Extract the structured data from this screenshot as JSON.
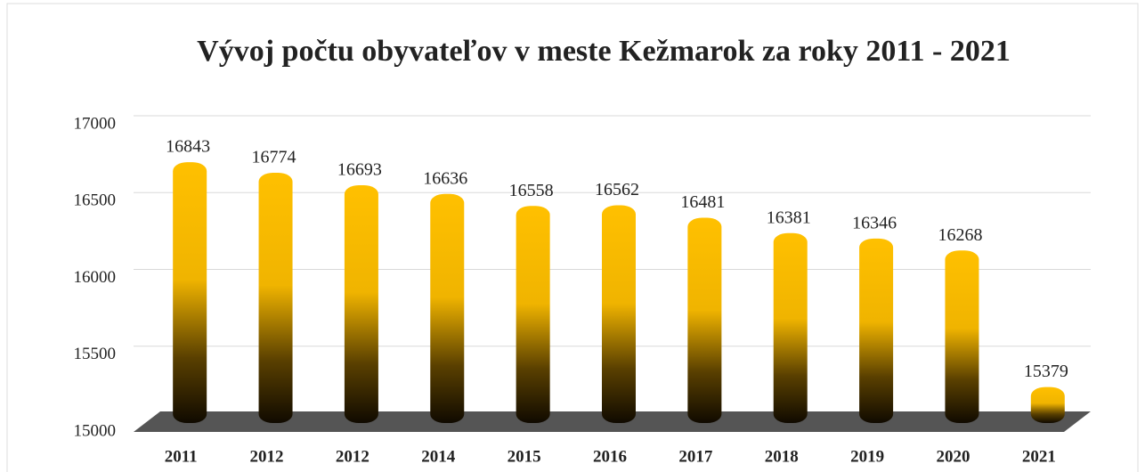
{
  "chart_data": {
    "type": "bar",
    "title": "Vývoj počtu obyvateľov v meste Kežmarok za roky 2011 - 2021",
    "categories": [
      "2011",
      "2012",
      "2012",
      "2014",
      "2015",
      "2016",
      "2017",
      "2018",
      "2019",
      "2020",
      "2021"
    ],
    "values": [
      16843,
      16774,
      16693,
      16636,
      16558,
      16562,
      16481,
      16381,
      16346,
      16268,
      15379
    ],
    "color": "#ffc000",
    "ylim": [
      15000,
      17000
    ],
    "yticks": [
      15000,
      15500,
      16000,
      16500,
      17000
    ],
    "grid": true
  }
}
